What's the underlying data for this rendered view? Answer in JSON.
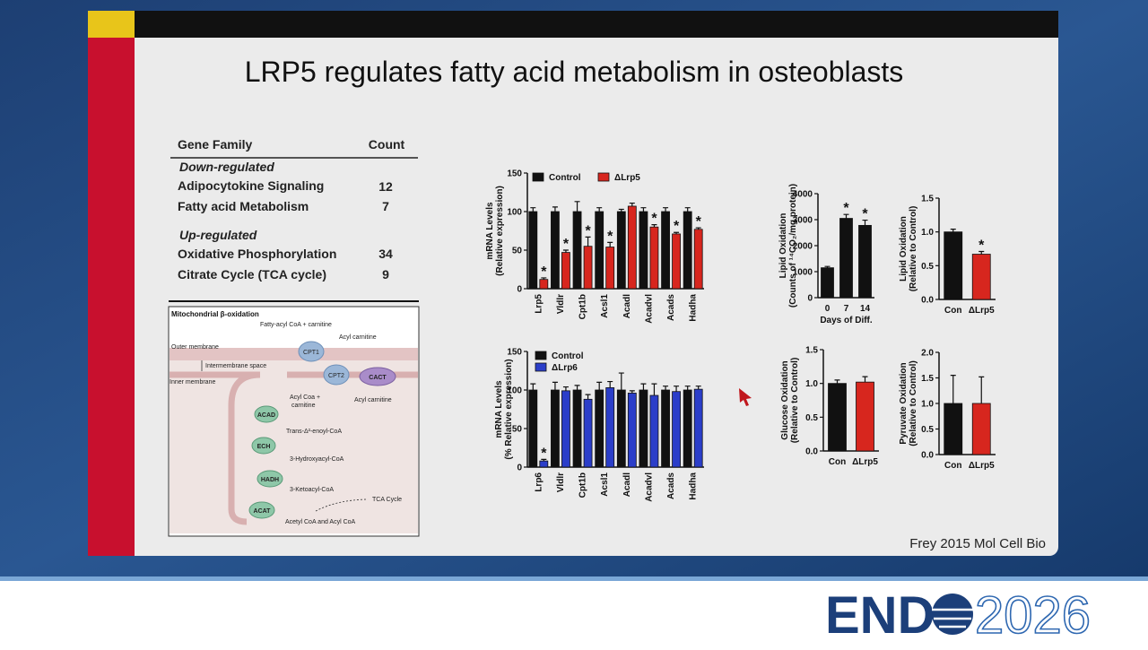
{
  "slide": {
    "title": "LRP5 regulates fatty acid metabolism in osteoblasts",
    "citation": "Frey 2015 Mol Cell Bio"
  },
  "logo": {
    "left": "END",
    "right": "2026"
  },
  "table": {
    "header": [
      "Gene Family",
      "Count"
    ],
    "sections": [
      {
        "label": "Down-regulated",
        "rows": [
          [
            "Adipocytokine Signaling",
            12
          ],
          [
            "Fatty acid Metabolism",
            7
          ]
        ]
      },
      {
        "label": "Up-regulated",
        "rows": [
          [
            "Oxidative Phosphorylation",
            34
          ],
          [
            "Citrate Cycle (TCA cycle)",
            9
          ]
        ]
      }
    ]
  },
  "diagram": {
    "title": "Mitochondrial β-oxidation",
    "labels": [
      "Fatty-acyl CoA + carnitine",
      "Acyl carnitine",
      "CPT1",
      "Outer membrane",
      "Intermembrane space",
      "Inner membrane",
      "CPT2",
      "CACT",
      "Acyl carnitine",
      "Acyl Coa +",
      "carnitine",
      "ACAD",
      "Trans-Δ²-enoyl-CoA",
      "ECH",
      "3-Hydroxyacyl-CoA",
      "HADH",
      "3-Ketoacyl-CoA",
      "ACAT",
      "TCA Cycle",
      "Acetyl CoA and Acyl CoA"
    ]
  },
  "chart_data": [
    {
      "type": "bar",
      "ylabel": [
        "mRNA Levels",
        "(Relative expression)"
      ],
      "categories": [
        "Lrp5",
        "Vldlr",
        "Cpt1b",
        "Acsl1",
        "Acadl",
        "Acadvl",
        "Acads",
        "Hadha"
      ],
      "series": [
        {
          "name": "Control",
          "color": "#111111",
          "values": [
            100,
            100,
            100,
            100,
            100,
            100,
            100,
            100
          ],
          "errors": [
            5,
            6,
            13,
            5,
            3,
            5,
            5,
            5
          ]
        },
        {
          "name": "ΔLrp5",
          "color": "#d7261e",
          "values": [
            12,
            47,
            55,
            54,
            107,
            80,
            71,
            77
          ],
          "errors": [
            2,
            3,
            12,
            6,
            4,
            3,
            2,
            2
          ]
        }
      ],
      "significance": [
        "*",
        "*",
        "*",
        "*",
        null,
        "*",
        "*",
        "*"
      ],
      "ylim": [
        0,
        150
      ],
      "yticks": [
        0,
        50,
        100,
        150
      ],
      "legend": "top"
    },
    {
      "type": "bar",
      "ylabel": [
        "mRNA Levels",
        "(% Relative expression)"
      ],
      "categories": [
        "Lrp6",
        "Vldlr",
        "Cpt1b",
        "Acsl1",
        "Acadl",
        "Acadvl",
        "Acads",
        "Hadha"
      ],
      "series": [
        {
          "name": "Control",
          "color": "#111111",
          "values": [
            100,
            100,
            100,
            100,
            100,
            100,
            100,
            100
          ],
          "errors": [
            8,
            10,
            6,
            10,
            22,
            8,
            5,
            5
          ]
        },
        {
          "name": "ΔLrp6",
          "color": "#2b3ec9",
          "values": [
            8,
            99,
            88,
            103,
            96,
            93,
            98,
            101
          ],
          "errors": [
            2,
            5,
            6,
            8,
            3,
            15,
            7,
            4
          ]
        }
      ],
      "significance": [
        "*",
        null,
        null,
        null,
        null,
        null,
        null,
        null
      ],
      "ylim": [
        0,
        150
      ],
      "yticks": [
        0,
        50,
        100,
        150
      ],
      "legend": "upper-left"
    },
    {
      "type": "bar",
      "ylabel": [
        "Lipid Oxidation",
        "(Counts of ¹⁴CO₂/mg protein)"
      ],
      "xlabel": "Days of Diff.",
      "categories": [
        "0",
        "7",
        "14"
      ],
      "values": [
        1150,
        3050,
        2780
      ],
      "errors": [
        50,
        150,
        200
      ],
      "colors": [
        "#111111",
        "#111111",
        "#111111"
      ],
      "significance": [
        null,
        "*",
        "*"
      ],
      "ylim": [
        0,
        4000
      ],
      "yticks": [
        0,
        1000,
        2000,
        3000,
        4000
      ]
    },
    {
      "type": "bar",
      "ylabel": [
        "Lipid Oxidation",
        "(Relative to Control)"
      ],
      "categories": [
        "Con",
        "ΔLrp5"
      ],
      "values": [
        1.0,
        0.67
      ],
      "errors": [
        0.04,
        0.04
      ],
      "colors": [
        "#111111",
        "#d7261e"
      ],
      "significance": [
        null,
        "*"
      ],
      "ylim": [
        0,
        1.5
      ],
      "yticks": [
        {
          "value": 0,
          "label": "0.0"
        },
        {
          "value": 0.5,
          "label": "0.5"
        },
        {
          "value": 1,
          "label": "1.0"
        },
        {
          "value": 1.5,
          "label": "1.5"
        }
      ]
    },
    {
      "type": "bar",
      "ylabel": [
        "Glucose Oxidation",
        "(Relative to Control)"
      ],
      "categories": [
        "Con",
        "ΔLrp5"
      ],
      "values": [
        1.0,
        1.02
      ],
      "errors": [
        0.05,
        0.08
      ],
      "colors": [
        "#111111",
        "#d7261e"
      ],
      "ylim": [
        0,
        1.5
      ],
      "yticks": [
        {
          "value": 0,
          "label": "0.0"
        },
        {
          "value": 0.5,
          "label": "0.5"
        },
        {
          "value": 1,
          "label": "1.0"
        },
        {
          "value": 1.5,
          "label": "1.5"
        }
      ]
    },
    {
      "type": "bar",
      "ylabel": [
        "Pyruvate Oxidation",
        "(Relative to Control)"
      ],
      "categories": [
        "Con",
        "ΔLrp5"
      ],
      "values": [
        1.0,
        1.0
      ],
      "errors": [
        0.55,
        0.52
      ],
      "colors": [
        "#111111",
        "#d7261e"
      ],
      "ylim": [
        0,
        2
      ],
      "yticks": [
        {
          "value": 0,
          "label": "0.0"
        },
        {
          "value": 0.5,
          "label": "0.5"
        },
        {
          "value": 1,
          "label": "1.0"
        },
        {
          "value": 1.5,
          "label": "1.5"
        },
        {
          "value": 2,
          "label": "2.0"
        }
      ]
    }
  ]
}
